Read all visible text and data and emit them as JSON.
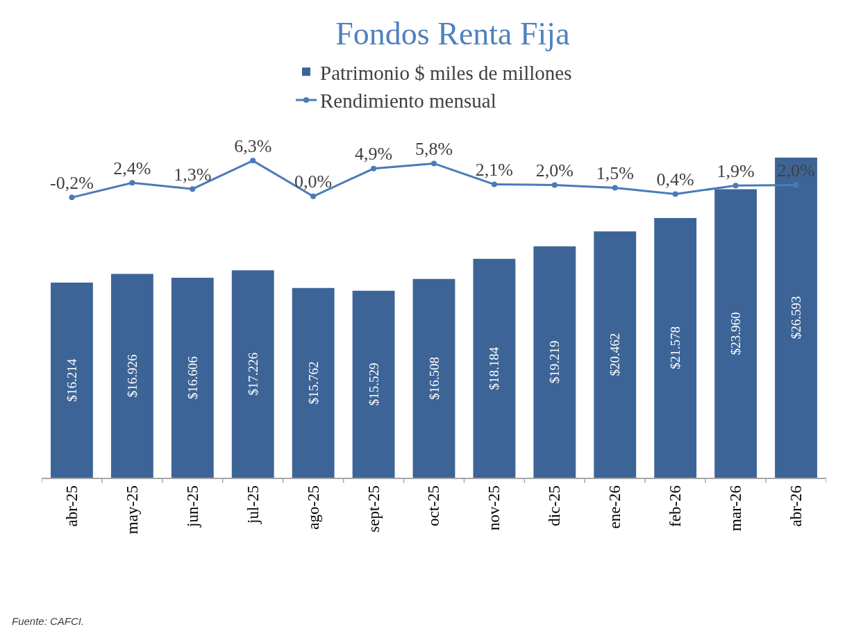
{
  "chart_data": {
    "type": "bar",
    "title": "Fondos Renta Fija",
    "categories": [
      "abr-25",
      "may-25",
      "jun-25",
      "jul-25",
      "ago-25",
      "sept-25",
      "oct-25",
      "nov-25",
      "dic-25",
      "ene-26",
      "feb-26",
      "mar-26",
      "abr-26"
    ],
    "series": [
      {
        "name": "Patrimonio $ miles de millones",
        "color": "#3d6496",
        "values": [
          16214,
          16926,
          16606,
          17226,
          15762,
          15529,
          16508,
          18184,
          19219,
          20462,
          21578,
          23960,
          26593
        ],
        "value_labels": [
          "$16.214",
          "$16.926",
          "$16.606",
          "$17.226",
          "$15.762",
          "$15.529",
          "$16.508",
          "$18.184",
          "$19.219",
          "$20.462",
          "$21.578",
          "$23.960",
          "$26.593"
        ]
      },
      {
        "name": "Rendimiento mensual",
        "type": "line",
        "axis": "y2",
        "color": "#4a7ab8",
        "values": [
          -0.2,
          2.4,
          1.3,
          6.3,
          0.0,
          4.9,
          5.8,
          2.1,
          2.0,
          1.5,
          0.4,
          1.9,
          2.0
        ],
        "value_labels": [
          "-0,2%",
          "2,4%",
          "1,3%",
          "6,3%",
          "0,0%",
          "4,9%",
          "5,8%",
          "2,1%",
          "2,0%",
          "1,5%",
          "0,4%",
          "1,9%",
          "2,0%"
        ]
      }
    ],
    "marker": "circle",
    "legend": "top",
    "annotations": [
      "Fuente: CAFCI."
    ]
  }
}
